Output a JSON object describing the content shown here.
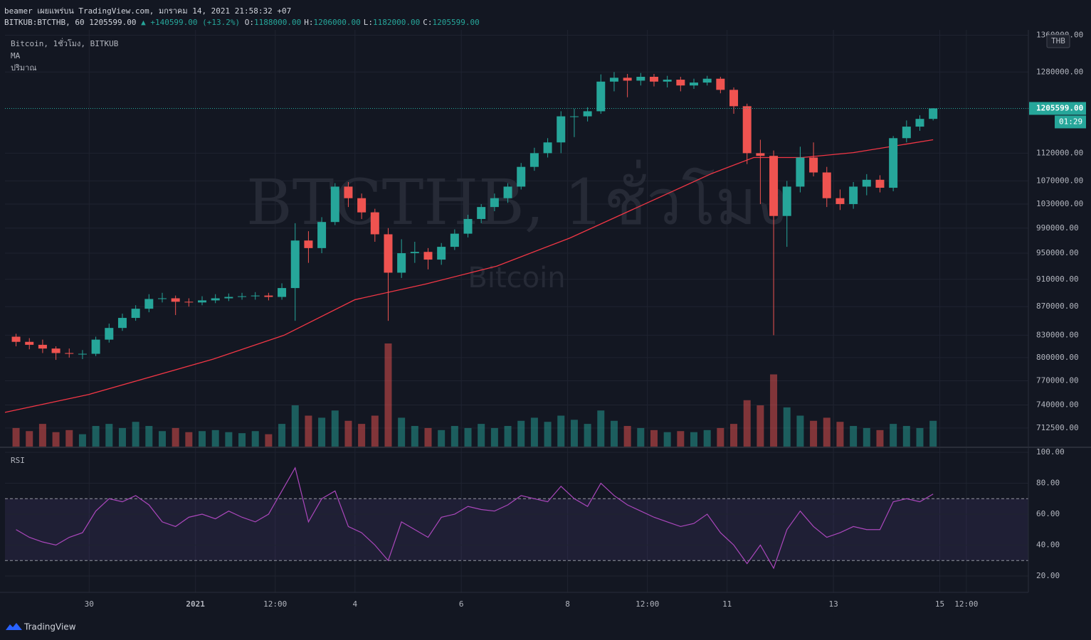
{
  "header": {
    "author_line": "beamer เผยแพร่บน TradingView.com, มกราคม 14, 2021 21:58:32 +07",
    "symbol": "BITKUB:BTCTHB, 60",
    "price": "1205599.00",
    "change": "▲ +140599.00 (+13.2%)",
    "ohlc": [
      {
        "label": "O:",
        "value": "1188000.00"
      },
      {
        "label": "H:",
        "value": "1206000.00"
      },
      {
        "label": "L:",
        "value": "1182000.00"
      },
      {
        "label": "C:",
        "value": "1205599.00"
      }
    ]
  },
  "legend": [
    "Bitcoin, 1ชั่วโมง, BITKUB",
    "MA",
    "ปริมาณ"
  ],
  "watermark": {
    "title": "BTCTHB, 1ชั่วโมง",
    "subtitle": "Bitcoin"
  },
  "footer": "TradingView",
  "chart_data": [
    {
      "type": "candlestick",
      "currency": "THB",
      "log": true,
      "up_color": "#26a69a",
      "down_color": "#ef5350",
      "ylim": [
        691000,
        1372000
      ],
      "xlim": [
        0,
        462
      ],
      "yticks": [
        {
          "value": 1360000,
          "label": "1360000.00"
        },
        {
          "value": 1280000,
          "label": "1280000.00"
        },
        {
          "value": 1120000,
          "label": "1120000.00"
        },
        {
          "value": 1070000,
          "label": "1070000.00"
        },
        {
          "value": 1030000,
          "label": "1030000.00"
        },
        {
          "value": 990000,
          "label": "990000.00"
        },
        {
          "value": 950000,
          "label": "950000.00"
        },
        {
          "value": 910000,
          "label": "910000.00"
        },
        {
          "value": 870000,
          "label": "870000.00"
        },
        {
          "value": 830000,
          "label": "830000.00"
        },
        {
          "value": 800000,
          "label": "800000.00"
        },
        {
          "value": 770000,
          "label": "770000.00"
        },
        {
          "value": 740000,
          "label": "740000.00"
        },
        {
          "value": 712500,
          "label": "712500.00"
        }
      ],
      "xticks": [
        {
          "value": 38,
          "label": "30"
        },
        {
          "value": 86,
          "label": "2021"
        },
        {
          "value": 122,
          "label": "12:00"
        },
        {
          "value": 158,
          "label": "4"
        },
        {
          "value": 206,
          "label": "6"
        },
        {
          "value": 254,
          "label": "8"
        },
        {
          "value": 290,
          "label": "12:00"
        },
        {
          "value": 326,
          "label": "11"
        },
        {
          "value": 374,
          "label": "13"
        },
        {
          "value": 422,
          "label": "15"
        },
        {
          "value": 434,
          "label": "12:00"
        }
      ],
      "last_price": {
        "value": 1205599,
        "label": "1205599.00"
      },
      "countdown": "01:29",
      "x": [
        5,
        11,
        17,
        23,
        29,
        35,
        41,
        47,
        53,
        59,
        65,
        71,
        77,
        83,
        89,
        95,
        101,
        107,
        113,
        119,
        125,
        131,
        137,
        143,
        149,
        155,
        161,
        167,
        173,
        179,
        185,
        191,
        197,
        203,
        209,
        215,
        221,
        227,
        233,
        239,
        245,
        251,
        257,
        263,
        269,
        275,
        281,
        287,
        293,
        299,
        305,
        311,
        317,
        323,
        329,
        335,
        341,
        347,
        353,
        359,
        365,
        371,
        377,
        383,
        389,
        395,
        401,
        407,
        413,
        419
      ],
      "open": [
        828000,
        821000,
        817000,
        812000,
        806000,
        805000,
        805000,
        824000,
        840000,
        854000,
        867000,
        881000,
        882000,
        877000,
        876000,
        879000,
        882000,
        884000,
        885000,
        886000,
        884000,
        897000,
        970000,
        958000,
        1000000,
        1060000,
        1040000,
        1016000,
        980000,
        920000,
        950000,
        952000,
        940000,
        960000,
        981000,
        1005000,
        1025000,
        1040000,
        1060000,
        1095000,
        1120000,
        1140000,
        1190000,
        1190000,
        1200000,
        1260000,
        1268000,
        1262000,
        1270000,
        1260000,
        1264000,
        1252000,
        1258000,
        1266000,
        1243000,
        1210000,
        1120000,
        1115000,
        1010000,
        1060000,
        1112000,
        1085000,
        1040000,
        1030000,
        1060000,
        1072000,
        1058000,
        1148000,
        1170000,
        1185000
      ],
      "high": [
        832000,
        826000,
        824000,
        815000,
        812000,
        810000,
        828000,
        846000,
        860000,
        872000,
        888000,
        890000,
        886000,
        882000,
        885000,
        888000,
        889000,
        890000,
        891000,
        890000,
        904000,
        998000,
        985000,
        1008000,
        1066000,
        1068000,
        1048000,
        1022000,
        990000,
        972000,
        968000,
        958000,
        966000,
        988000,
        1012000,
        1030000,
        1048000,
        1066000,
        1102000,
        1130000,
        1148000,
        1200000,
        1205000,
        1208000,
        1275000,
        1280000,
        1276000,
        1278000,
        1276000,
        1272000,
        1270000,
        1266000,
        1272000,
        1270000,
        1248000,
        1215000,
        1145000,
        1125000,
        1070000,
        1132000,
        1140000,
        1095000,
        1055000,
        1068000,
        1082000,
        1080000,
        1152000,
        1182000,
        1192000,
        1206000
      ],
      "low": [
        815000,
        811000,
        806000,
        797000,
        800000,
        798000,
        802000,
        820000,
        836000,
        850000,
        862000,
        876000,
        858000,
        870000,
        872000,
        875000,
        878000,
        880000,
        880000,
        879000,
        880000,
        850000,
        935000,
        950000,
        995000,
        1025000,
        1005000,
        968000,
        850000,
        912000,
        935000,
        925000,
        932000,
        955000,
        975000,
        998000,
        1018000,
        1032000,
        1055000,
        1088000,
        1112000,
        1120000,
        1150000,
        1180000,
        1195000,
        1240000,
        1228000,
        1252000,
        1250000,
        1248000,
        1240000,
        1245000,
        1252000,
        1236000,
        1195000,
        1100000,
        1030000,
        830000,
        960000,
        1050000,
        1078000,
        1025000,
        1020000,
        1022000,
        1045000,
        1050000,
        1052000,
        1140000,
        1162000,
        1182000
      ],
      "close": [
        821000,
        817000,
        812000,
        806000,
        805000,
        805000,
        824000,
        840000,
        854000,
        867000,
        881000,
        882000,
        877000,
        876000,
        879000,
        882000,
        884000,
        885000,
        886000,
        884000,
        897000,
        970000,
        958000,
        1000000,
        1060000,
        1040000,
        1016000,
        980000,
        920000,
        950000,
        952000,
        940000,
        960000,
        981000,
        1005000,
        1025000,
        1040000,
        1060000,
        1095000,
        1120000,
        1140000,
        1190000,
        1190000,
        1200000,
        1260000,
        1268000,
        1262000,
        1270000,
        1260000,
        1264000,
        1252000,
        1258000,
        1266000,
        1243000,
        1210000,
        1120000,
        1115000,
        1010000,
        1060000,
        1112000,
        1085000,
        1040000,
        1030000,
        1060000,
        1072000,
        1058000,
        1148000,
        1170000,
        1185000,
        1205599
      ],
      "volume": [
        18,
        15,
        22,
        14,
        16,
        12,
        20,
        22,
        18,
        24,
        20,
        15,
        18,
        14,
        15,
        16,
        14,
        13,
        15,
        12,
        22,
        40,
        30,
        28,
        35,
        25,
        22,
        30,
        100,
        28,
        20,
        18,
        16,
        20,
        18,
        22,
        18,
        20,
        25,
        28,
        24,
        30,
        26,
        22,
        35,
        25,
        20,
        18,
        16,
        14,
        15,
        14,
        16,
        18,
        22,
        45,
        40,
        70,
        38,
        30,
        25,
        28,
        24,
        20,
        18,
        16,
        22,
        20,
        18,
        25
      ],
      "volume_max": 100,
      "ma": {
        "color": "#f23645",
        "x": [
          0,
          38,
          94,
          126,
          158,
          190,
          222,
          255,
          287,
          319,
          338,
          360,
          383,
          419
        ],
        "values": [
          731000,
          753000,
          798000,
          830000,
          880000,
          903000,
          930000,
          974000,
          1027000,
          1083000,
          1112000,
          1112000,
          1121000,
          1145000
        ]
      }
    },
    {
      "type": "line",
      "title": "RSI",
      "color": "#ab47bc",
      "ylim": [
        9.4,
        102.8
      ],
      "bands": [
        30,
        70
      ],
      "yticks": [
        {
          "value": 100,
          "label": "100.00"
        },
        {
          "value": 80,
          "label": "80.00"
        },
        {
          "value": 60,
          "label": "60.00"
        },
        {
          "value": 40,
          "label": "40.00"
        },
        {
          "value": 20,
          "label": "20.00"
        }
      ],
      "values": [
        50,
        45,
        42,
        40,
        45,
        48,
        62,
        70,
        68,
        72,
        66,
        55,
        52,
        58,
        60,
        57,
        62,
        58,
        55,
        60,
        75,
        90,
        55,
        70,
        75,
        52,
        48,
        40,
        30,
        55,
        50,
        45,
        58,
        60,
        65,
        63,
        62,
        66,
        72,
        70,
        68,
        78,
        70,
        65,
        80,
        72,
        66,
        62,
        58,
        55,
        52,
        54,
        60,
        48,
        40,
        28,
        40,
        25,
        50,
        62,
        52,
        45,
        48,
        52,
        50,
        50,
        68,
        70,
        68,
        73
      ]
    }
  ]
}
